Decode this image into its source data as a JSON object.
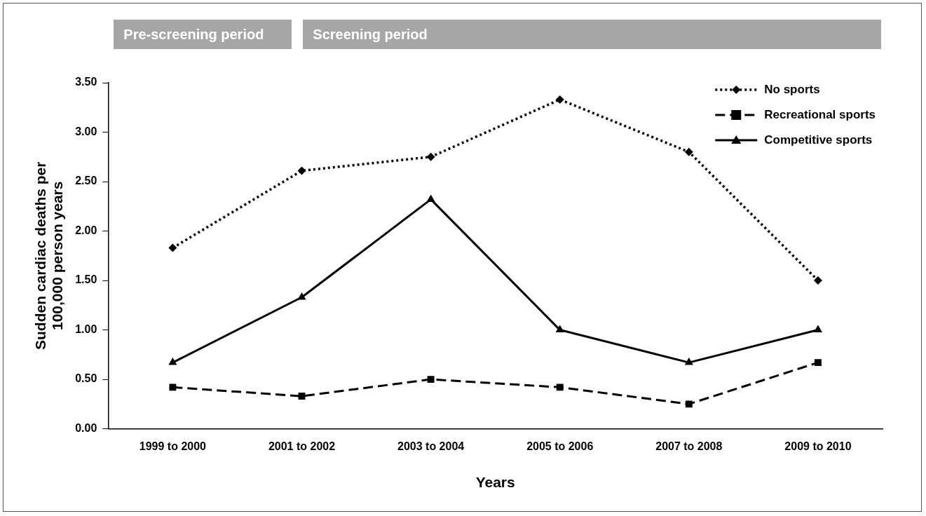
{
  "chart_data": {
    "type": "line",
    "xlabel": "Years",
    "ylabel": "Sudden cardiac deaths per 100,000 person years",
    "annotations": [
      "Pre-screening period",
      "Screening period"
    ],
    "categories": [
      "1999 to 2000",
      "2001 to 2002",
      "2003 to 2004",
      "2005 to 2006",
      "2007 to 2008",
      "2009 to 2010"
    ],
    "series": [
      {
        "name": "No sports",
        "color": "#000000",
        "marker": "diamond",
        "line_style": "dotted",
        "values": [
          1.83,
          2.61,
          2.75,
          3.33,
          2.8,
          1.5
        ]
      },
      {
        "name": "Recreational sports",
        "color": "#000000",
        "marker": "square",
        "line_style": "dashed",
        "values": [
          0.42,
          0.33,
          0.5,
          0.42,
          0.25,
          0.67
        ]
      },
      {
        "name": "Competitive sports",
        "color": "#000000",
        "marker": "triangle",
        "line_style": "solid",
        "values": [
          0.67,
          1.33,
          2.32,
          1.0,
          0.67,
          1.0
        ]
      }
    ],
    "ylim": [
      0,
      3.5
    ],
    "yticks": [
      {
        "value": 0,
        "label": "0.00"
      },
      {
        "value": 0.5,
        "label": "0.50"
      },
      {
        "value": 1,
        "label": "1.00"
      },
      {
        "value": 1.5,
        "label": "1.50"
      },
      {
        "value": 2,
        "label": "2.00"
      },
      {
        "value": 2.5,
        "label": "2.50"
      },
      {
        "value": 3,
        "label": "3.00"
      },
      {
        "value": 3.5,
        "label": "3.50"
      }
    ],
    "grid": false,
    "legend": "top right"
  }
}
